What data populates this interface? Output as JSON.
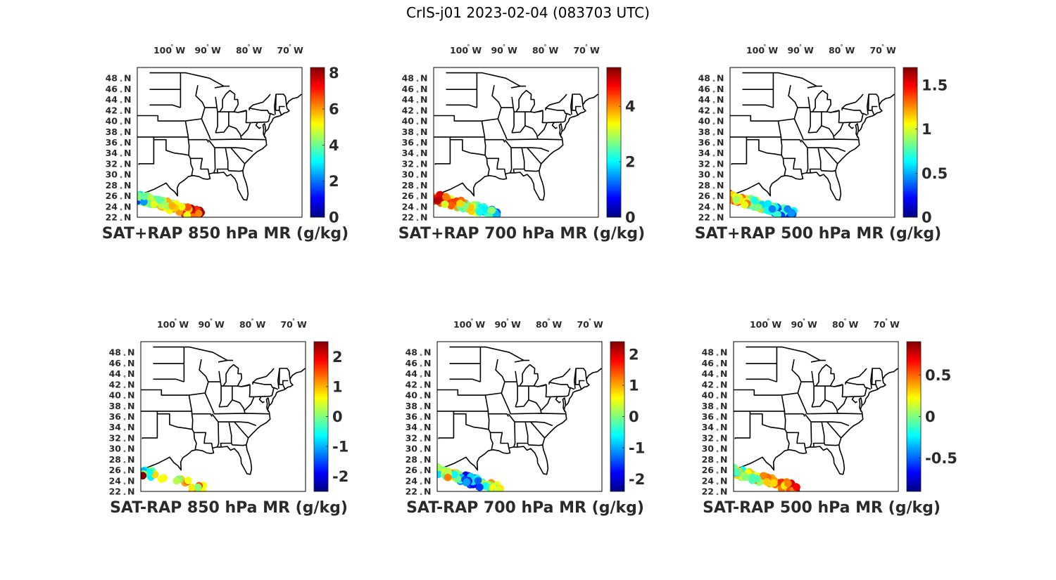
{
  "figure": {
    "title": "CrIS-j01 2023-02-04 (083703 UTC)"
  },
  "axes": {
    "lon_ticks": [
      {
        "value": -100,
        "label": "100",
        "hemi": "W"
      },
      {
        "value": -90,
        "label": "90",
        "hemi": "W"
      },
      {
        "value": -80,
        "label": "80",
        "hemi": "W"
      },
      {
        "value": -70,
        "label": "70",
        "hemi": "W"
      }
    ],
    "lat_ticks": [
      {
        "value": 48,
        "label": "48",
        "hemi": "N"
      },
      {
        "value": 46,
        "label": "46",
        "hemi": "N"
      },
      {
        "value": 44,
        "label": "44",
        "hemi": "N"
      },
      {
        "value": 42,
        "label": "42",
        "hemi": "N"
      },
      {
        "value": 40,
        "label": "40",
        "hemi": "N"
      },
      {
        "value": 38,
        "label": "38",
        "hemi": "N"
      },
      {
        "value": 36,
        "label": "36",
        "hemi": "N"
      },
      {
        "value": 34,
        "label": "34",
        "hemi": "N"
      },
      {
        "value": 32,
        "label": "32",
        "hemi": "N"
      },
      {
        "value": 30,
        "label": "30",
        "hemi": "N"
      },
      {
        "value": 28,
        "label": "28",
        "hemi": "N"
      },
      {
        "value": 26,
        "label": "26",
        "hemi": "N"
      },
      {
        "value": 24,
        "label": "24",
        "hemi": "N"
      },
      {
        "value": 22,
        "label": "22",
        "hemi": "N"
      }
    ],
    "degree_symbol": "°",
    "lon_range": [
      -107,
      -67
    ],
    "lat_range": [
      22,
      50
    ],
    "colormap": "jet"
  },
  "panels": [
    {
      "title": "SAT+RAP 850 hPa MR (g/kg)",
      "cmin": 0,
      "cmax": 8.3,
      "colorbar_ticks": [
        {
          "value": 0,
          "label": "0"
        },
        {
          "value": 2,
          "label": "2"
        },
        {
          "value": 4,
          "label": "4"
        },
        {
          "value": 6,
          "label": "6"
        },
        {
          "value": 8,
          "label": "8"
        }
      ]
    },
    {
      "title": "SAT+RAP 700 hPa MR (g/kg)",
      "cmin": 0,
      "cmax": 5.4,
      "colorbar_ticks": [
        {
          "value": 0,
          "label": "0"
        },
        {
          "value": 2,
          "label": "2"
        },
        {
          "value": 4,
          "label": "4"
        }
      ]
    },
    {
      "title": "SAT+RAP 500 hPa MR (g/kg)",
      "cmin": 0,
      "cmax": 1.7,
      "colorbar_ticks": [
        {
          "value": 0,
          "label": "0"
        },
        {
          "value": 0.5,
          "label": "0.5"
        },
        {
          "value": 1,
          "label": "1"
        },
        {
          "value": 1.5,
          "label": "1.5"
        }
      ]
    },
    {
      "title": "SAT-RAP 850 hPa MR (g/kg)",
      "cmin": -2.5,
      "cmax": 2.5,
      "colorbar_ticks": [
        {
          "value": -2,
          "label": "-2"
        },
        {
          "value": -1,
          "label": "-1"
        },
        {
          "value": 0,
          "label": "0"
        },
        {
          "value": 1,
          "label": "1"
        },
        {
          "value": 2,
          "label": "2"
        }
      ]
    },
    {
      "title": "SAT-RAP 700 hPa MR (g/kg)",
      "cmin": -2.4,
      "cmax": 2.4,
      "colorbar_ticks": [
        {
          "value": -2,
          "label": "-2"
        },
        {
          "value": -1,
          "label": "-1"
        },
        {
          "value": 0,
          "label": "0"
        },
        {
          "value": 1,
          "label": "1"
        },
        {
          "value": 2,
          "label": "2"
        }
      ]
    },
    {
      "title": "SAT-RAP 500 hPa MR (g/kg)",
      "cmin": -0.9,
      "cmax": 0.9,
      "colorbar_ticks": [
        {
          "value": -0.5,
          "label": "-0.5"
        },
        {
          "value": 0,
          "label": "0"
        },
        {
          "value": 0.5,
          "label": "0.5"
        }
      ]
    }
  ]
}
